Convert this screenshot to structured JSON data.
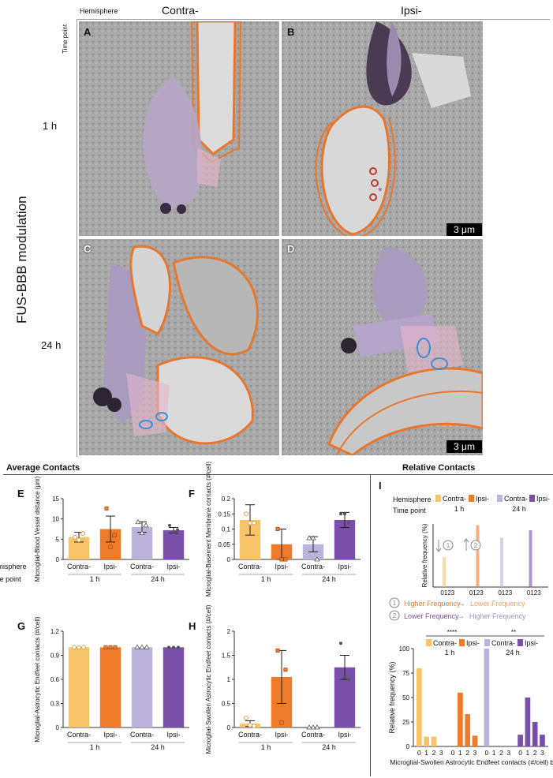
{
  "figure": {
    "hemisphere_label": "Hemisphere",
    "timepoint_label": "Time point",
    "contra": "Contra-",
    "ipsi": "Ipsi-",
    "tp1": "1 h",
    "tp24": "24 h",
    "vertical_title": "FUS-BBB modulation",
    "scale_bar": "3 μm",
    "panel_letters": [
      "A",
      "B",
      "C",
      "D",
      "E",
      "F",
      "G",
      "H",
      "I"
    ],
    "avg_contacts_title": "Average Contacts",
    "rel_contacts_title": "Relative Contacts",
    "colors": {
      "contra1": "#f7c46a",
      "ipsi1": "#ee7b2a",
      "contra24": "#bbb3dc",
      "ipsi24": "#7a4fa8",
      "outline_orange": "#e8772e",
      "outline_blue": "#3f8fd0"
    }
  },
  "chart_data": [
    {
      "id": "E",
      "type": "bar",
      "ylabel": "Microglial-Blood Vessel distance (μm)",
      "ylim": [
        0,
        15
      ],
      "yticks": [
        0,
        5,
        10,
        15
      ],
      "categories": [
        "Contra- 1 h",
        "Ipsi- 1 h",
        "Contra- 24 h",
        "Ipsi- 24 h"
      ],
      "values": [
        5.5,
        7.5,
        8.0,
        7.2
      ],
      "errors": [
        1.2,
        3.2,
        1.3,
        0.7
      ],
      "points": [
        [
          5.5,
          4.8,
          6.4
        ],
        [
          12.6,
          3.1,
          6.0
        ],
        [
          9.2,
          6.5,
          8.4
        ],
        [
          8.4,
          6.8,
          7.3
        ]
      ]
    },
    {
      "id": "F",
      "type": "bar",
      "ylabel": "Microglial-Basement Membrane contacts (#/cell)",
      "ylim": [
        0,
        0.2
      ],
      "yticks": [
        0,
        0.05,
        0.1,
        0.15,
        0.2
      ],
      "categories": [
        "Contra- 1 h",
        "Ipsi- 1 h",
        "Contra- 24 h",
        "Ipsi- 24 h"
      ],
      "values": [
        0.13,
        0.05,
        0.05,
        0.13
      ],
      "errors": [
        0.05,
        0.05,
        0.025,
        0.025
      ],
      "points": [
        [
          0.15,
          0.12,
          0.12
        ],
        [
          0.1,
          0.0,
          0.0
        ],
        [
          0.07,
          0.07,
          0.0
        ],
        [
          0.15,
          0.15,
          0.12
        ]
      ]
    },
    {
      "id": "G",
      "type": "bar",
      "ylabel": "Microglial-Astrocytic Endfeet contacts (#/cell)",
      "ylim": [
        0,
        1.2
      ],
      "yticks": [
        0,
        0.3,
        0.6,
        0.9,
        1.2
      ],
      "yticklabels": [
        "0",
        "0.3",
        "0.6",
        "0.9",
        "1.2"
      ],
      "categories": [
        "Contra- 1 h",
        "Ipsi- 1 h",
        "Contra- 24 h",
        "Ipsi- 24 h"
      ],
      "values": [
        1.0,
        1.0,
        1.0,
        1.0
      ],
      "errors": [
        0,
        0,
        0,
        0
      ],
      "points": [
        [
          1,
          1,
          1
        ],
        [
          1,
          1,
          1
        ],
        [
          1,
          1,
          1
        ],
        [
          1,
          1,
          1
        ]
      ]
    },
    {
      "id": "H",
      "type": "bar",
      "ylabel": "Microglial-Swollen Astrocytic Endfeet contacts (#/cell)",
      "ylim": [
        0,
        2
      ],
      "yticks": [
        0,
        0.5,
        1,
        1.5,
        2
      ],
      "categories": [
        "Contra- 1 h",
        "Ipsi- 1 h",
        "Contra- 24 h",
        "Ipsi- 24 h"
      ],
      "values": [
        0.08,
        1.05,
        0.0,
        1.25
      ],
      "errors": [
        0.06,
        0.55,
        0,
        0.25
      ],
      "points": [
        [
          0.2,
          0.05,
          0.03
        ],
        [
          1.6,
          0.1,
          1.2
        ],
        [
          0,
          0,
          0
        ],
        [
          1.75,
          1.05,
          1.0
        ]
      ]
    },
    {
      "id": "I-legend",
      "type": "bar",
      "ylabel": "Relative frequency (%)",
      "xticklabels": [
        "0123",
        "0123",
        "0123",
        "0123"
      ],
      "values": [
        0.48,
        0.98,
        0.78,
        0.9
      ],
      "legend_notes": [
        "Higher Frequency",
        "Lower Frequency",
        "Lower Frequency",
        "Higher Frequency"
      ]
    },
    {
      "id": "I",
      "type": "bar",
      "ylabel": "Relative frequency (%)",
      "xlabel": "Microglial-Swollen Astrocytic Endfeet contacts (#/cell) bin",
      "ylim": [
        0,
        100
      ],
      "yticks": [
        0,
        25,
        50,
        75,
        100
      ],
      "bins": [
        "0",
        "1",
        "2",
        "3"
      ],
      "series": [
        {
          "name": "Contra- 1 h",
          "values": [
            80,
            10,
            10,
            0
          ]
        },
        {
          "name": "Ipsi- 1 h",
          "values": [
            0,
            55,
            33,
            11
          ]
        },
        {
          "name": "Contra- 24 h",
          "values": [
            100,
            0,
            0,
            0
          ]
        },
        {
          "name": "Ipsi- 24 h",
          "values": [
            12,
            50,
            25,
            12
          ]
        }
      ],
      "significance": [
        "****",
        "**"
      ]
    }
  ],
  "legend_i": {
    "row1": [
      "1",
      "Higher Frequency",
      "Lower Frequency"
    ],
    "row2": [
      "2",
      "Lower Frequency",
      "Higher Frequency"
    ]
  }
}
